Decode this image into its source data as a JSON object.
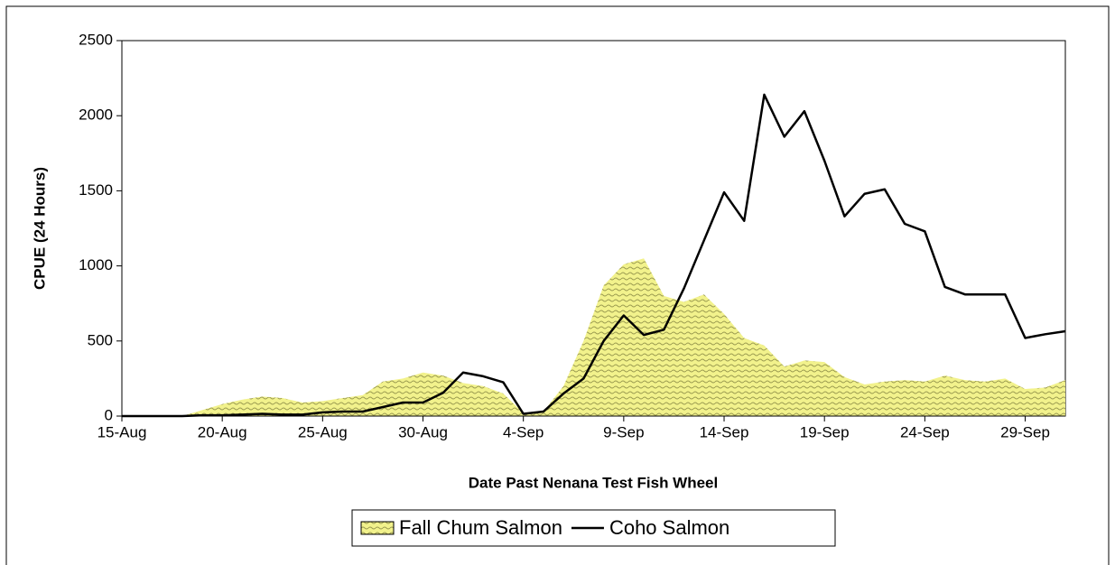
{
  "chart_data": {
    "type": "area-line",
    "x_label": "Date Past Nenana Test Fish Wheel",
    "y_label": "CPUE (24 Hours)",
    "categories": [
      "15-Aug",
      null,
      null,
      null,
      null,
      "20-Aug",
      null,
      null,
      null,
      null,
      "25-Aug",
      null,
      null,
      null,
      null,
      "30-Aug",
      null,
      null,
      null,
      null,
      "4-Sep",
      null,
      null,
      null,
      null,
      "9-Sep",
      null,
      null,
      null,
      null,
      "14-Sep",
      null,
      null,
      null,
      null,
      "19-Sep",
      null,
      null,
      null,
      null,
      "24-Sep",
      null,
      null,
      null,
      null,
      "29-Sep",
      null,
      null
    ],
    "series": [
      {
        "name": "Fall Chum Salmon",
        "type": "area",
        "color": "#f2f28c",
        "values": [
          0,
          0,
          0,
          0,
          40,
          80,
          110,
          130,
          120,
          90,
          100,
          120,
          140,
          230,
          250,
          290,
          270,
          220,
          200,
          150,
          20,
          30,
          200,
          500,
          870,
          1010,
          1050,
          800,
          760,
          810,
          680,
          520,
          470,
          330,
          370,
          360,
          260,
          210,
          230,
          240,
          230,
          270,
          240,
          230,
          250,
          180,
          190,
          240
        ]
      },
      {
        "name": "Coho Salmon",
        "type": "line",
        "color": "#000000",
        "values": [
          0,
          0,
          0,
          0,
          5,
          5,
          10,
          15,
          10,
          10,
          25,
          30,
          30,
          60,
          90,
          90,
          155,
          290,
          265,
          225,
          15,
          30,
          150,
          250,
          500,
          670,
          540,
          575,
          850,
          1170,
          1490,
          1300,
          2140,
          1860,
          2030,
          1700,
          1330,
          1480,
          1510,
          1280,
          1230,
          860,
          810,
          810,
          810,
          520,
          545,
          565
        ]
      }
    ],
    "ylim": [
      0,
      2500
    ],
    "yticks": [
      0,
      500,
      1000,
      1500,
      2000,
      2500
    ],
    "legend": "bottom"
  }
}
